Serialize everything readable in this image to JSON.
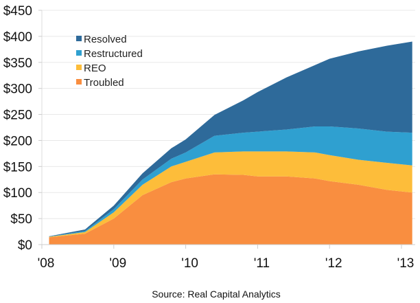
{
  "chart_data": {
    "type": "area",
    "stacked": true,
    "title": "",
    "xlabel": "",
    "ylabel": "",
    "source": "Source: Real Capital Analytics",
    "ylim": [
      0,
      450
    ],
    "yticks": [
      0,
      50,
      100,
      150,
      200,
      250,
      300,
      350,
      400,
      450
    ],
    "ytick_labels": [
      "$0",
      "$50",
      "$100",
      "$150",
      "$200",
      "$250",
      "$300",
      "$350",
      "$400",
      "$450"
    ],
    "xlim": [
      2008,
      2013
    ],
    "xticks": [
      2008,
      2009,
      2010,
      2011,
      2012,
      2013
    ],
    "xtick_labels": [
      "'08",
      "'09",
      "'10",
      "'11",
      "'12",
      "'13"
    ],
    "grid": true,
    "legend_position": "top-left",
    "x": [
      2008.1,
      2008.6,
      2009.0,
      2009.4,
      2009.8,
      2010.0,
      2010.4,
      2010.8,
      2011.0,
      2011.4,
      2011.8,
      2012.0,
      2012.4,
      2012.8,
      2013.15
    ],
    "series": [
      {
        "name": "Troubled",
        "color": "#F98E40",
        "values": [
          14,
          21,
          50,
          95,
          120,
          127,
          135,
          134,
          131,
          131,
          127,
          122,
          115,
          105,
          100
        ]
      },
      {
        "name": "REO",
        "color": "#FDBD3A",
        "values": [
          1,
          3,
          12,
          20,
          30,
          32,
          42,
          45,
          48,
          48,
          50,
          50,
          48,
          52,
          52
        ]
      },
      {
        "name": "Restructured",
        "color": "#2FA0D0",
        "values": [
          0.5,
          2,
          6,
          10,
          15,
          18,
          32,
          36,
          38,
          42,
          50,
          55,
          60,
          60,
          63
        ]
      },
      {
        "name": "Resolved",
        "color": "#2E6A9A",
        "values": [
          0.5,
          3,
          7,
          12,
          20,
          25,
          40,
          62,
          76,
          100,
          118,
          130,
          148,
          165,
          175
        ]
      }
    ],
    "legend_order": [
      "Resolved",
      "Restructured",
      "REO",
      "Troubled"
    ]
  }
}
